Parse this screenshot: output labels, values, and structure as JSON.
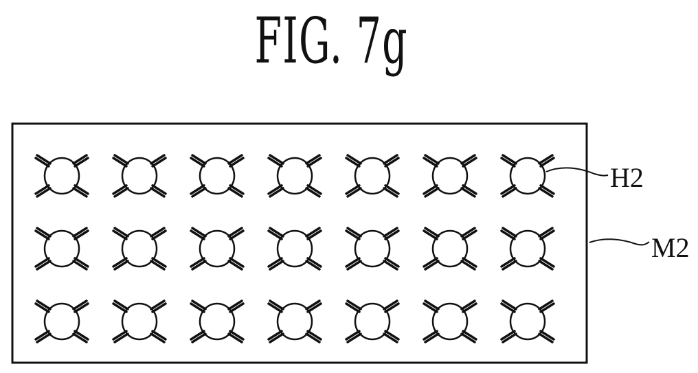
{
  "figure": {
    "title": "FIG. 7g"
  },
  "mask": {
    "label": "M2",
    "hole_label": "H2",
    "rows": 3,
    "cols": 7
  },
  "colors": {
    "stroke": "#111111",
    "background": "#ffffff"
  }
}
